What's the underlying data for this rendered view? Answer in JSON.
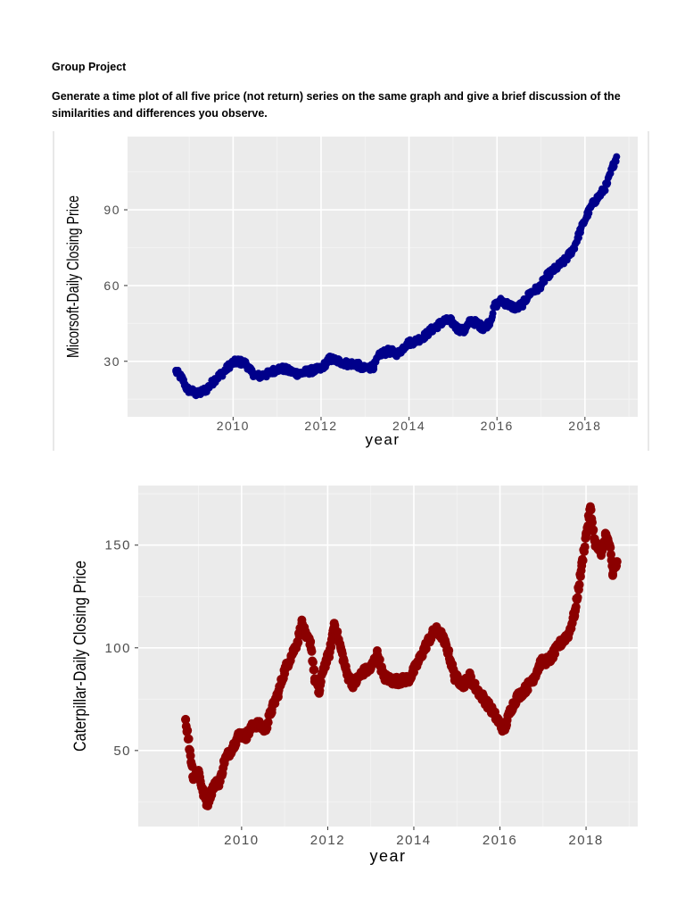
{
  "document": {
    "title": "Group Project",
    "instructions": "Generate a time plot of all five price (not return) series on the same graph and give a brief discussion of the similarities and differences you observe."
  },
  "chart_data": [
    {
      "type": "scatter",
      "title": "",
      "xlabel": "year",
      "ylabel": "Micorsoft-Daily Closing Price",
      "xlim": [
        2007.6,
        2019.2
      ],
      "ylim": [
        8,
        119
      ],
      "xticks": [
        2010,
        2012,
        2014,
        2016,
        2018
      ],
      "yticks": [
        30,
        60,
        90
      ],
      "xtick_labels": [
        "2010",
        "2012",
        "2014",
        "2016",
        "2018"
      ],
      "ytick_labels": [
        "30",
        "60",
        "90"
      ],
      "color": "#00008b",
      "grid": true,
      "series_points": [
        [
          2008.7,
          26
        ],
        [
          2008.85,
          23
        ],
        [
          2008.95,
          19
        ],
        [
          2009.2,
          17
        ],
        [
          2009.4,
          19
        ],
        [
          2009.6,
          23
        ],
        [
          2009.8,
          26
        ],
        [
          2009.95,
          29
        ],
        [
          2010.1,
          30
        ],
        [
          2010.3,
          29
        ],
        [
          2010.4,
          26
        ],
        [
          2010.55,
          24
        ],
        [
          2010.8,
          25
        ],
        [
          2011.0,
          27
        ],
        [
          2011.15,
          27
        ],
        [
          2011.3,
          26
        ],
        [
          2011.5,
          25
        ],
        [
          2011.7,
          26
        ],
        [
          2012.0,
          27
        ],
        [
          2012.2,
          31
        ],
        [
          2012.4,
          30
        ],
        [
          2012.6,
          29
        ],
        [
          2012.8,
          29
        ],
        [
          2012.95,
          27
        ],
        [
          2013.2,
          28
        ],
        [
          2013.35,
          33
        ],
        [
          2013.55,
          34
        ],
        [
          2013.75,
          33
        ],
        [
          2013.95,
          37
        ],
        [
          2014.15,
          38
        ],
        [
          2014.35,
          40
        ],
        [
          2014.55,
          43
        ],
        [
          2014.8,
          46
        ],
        [
          2014.95,
          46
        ],
        [
          2015.1,
          43
        ],
        [
          2015.25,
          42
        ],
        [
          2015.4,
          46
        ],
        [
          2015.55,
          45
        ],
        [
          2015.7,
          43
        ],
        [
          2015.85,
          46
        ],
        [
          2015.95,
          52
        ],
        [
          2016.1,
          54
        ],
        [
          2016.3,
          52
        ],
        [
          2016.45,
          51
        ],
        [
          2016.6,
          53
        ],
        [
          2016.75,
          57
        ],
        [
          2016.95,
          59
        ],
        [
          2017.15,
          64
        ],
        [
          2017.35,
          67
        ],
        [
          2017.55,
          70
        ],
        [
          2017.75,
          75
        ],
        [
          2017.9,
          82
        ],
        [
          2018.05,
          88
        ],
        [
          2018.2,
          93
        ],
        [
          2018.35,
          96
        ],
        [
          2018.5,
          100
        ],
        [
          2018.65,
          108
        ],
        [
          2018.72,
          111
        ]
      ]
    },
    {
      "type": "scatter",
      "title": "",
      "xlabel": "year",
      "ylabel": "Caterpillar-Daily Closing Price",
      "xlim": [
        2007.6,
        2019.2
      ],
      "ylim": [
        13,
        179
      ],
      "xticks": [
        2010,
        2012,
        2014,
        2016,
        2018
      ],
      "yticks": [
        50,
        100,
        150
      ],
      "xtick_labels": [
        "2010",
        "2012",
        "2014",
        "2016",
        "2018"
      ],
      "ytick_labels": [
        "50",
        "100",
        "150"
      ],
      "color": "#8b0000",
      "grid": true,
      "series_points": [
        [
          2008.7,
          65
        ],
        [
          2008.8,
          50
        ],
        [
          2008.88,
          37
        ],
        [
          2009.0,
          40
        ],
        [
          2009.1,
          30
        ],
        [
          2009.2,
          24
        ],
        [
          2009.35,
          33
        ],
        [
          2009.5,
          35
        ],
        [
          2009.6,
          45
        ],
        [
          2009.8,
          52
        ],
        [
          2009.95,
          58
        ],
        [
          2010.1,
          57
        ],
        [
          2010.3,
          63
        ],
        [
          2010.45,
          62
        ],
        [
          2010.55,
          60
        ],
        [
          2010.7,
          70
        ],
        [
          2010.85,
          78
        ],
        [
          2011.0,
          89
        ],
        [
          2011.15,
          96
        ],
        [
          2011.3,
          103
        ],
        [
          2011.4,
          112
        ],
        [
          2011.5,
          105
        ],
        [
          2011.6,
          103
        ],
        [
          2011.7,
          85
        ],
        [
          2011.8,
          78
        ],
        [
          2011.9,
          90
        ],
        [
          2012.05,
          98
        ],
        [
          2012.15,
          112
        ],
        [
          2012.3,
          100
        ],
        [
          2012.45,
          87
        ],
        [
          2012.6,
          82
        ],
        [
          2012.8,
          88
        ],
        [
          2013.0,
          90
        ],
        [
          2013.15,
          97
        ],
        [
          2013.3,
          86
        ],
        [
          2013.5,
          84
        ],
        [
          2013.7,
          84
        ],
        [
          2013.9,
          85
        ],
        [
          2014.1,
          93
        ],
        [
          2014.3,
          102
        ],
        [
          2014.5,
          109
        ],
        [
          2014.65,
          106
        ],
        [
          2014.8,
          98
        ],
        [
          2014.95,
          86
        ],
        [
          2015.15,
          82
        ],
        [
          2015.3,
          86
        ],
        [
          2015.45,
          80
        ],
        [
          2015.6,
          76
        ],
        [
          2015.8,
          70
        ],
        [
          2016.0,
          63
        ],
        [
          2016.1,
          60
        ],
        [
          2016.25,
          70
        ],
        [
          2016.4,
          76
        ],
        [
          2016.6,
          80
        ],
        [
          2016.8,
          86
        ],
        [
          2016.95,
          93
        ],
        [
          2017.15,
          94
        ],
        [
          2017.4,
          102
        ],
        [
          2017.6,
          107
        ],
        [
          2017.75,
          118
        ],
        [
          2017.9,
          140
        ],
        [
          2018.0,
          155
        ],
        [
          2018.1,
          168
        ],
        [
          2018.2,
          152
        ],
        [
          2018.35,
          145
        ],
        [
          2018.45,
          155
        ],
        [
          2018.55,
          150
        ],
        [
          2018.62,
          136
        ],
        [
          2018.72,
          142
        ]
      ]
    }
  ]
}
